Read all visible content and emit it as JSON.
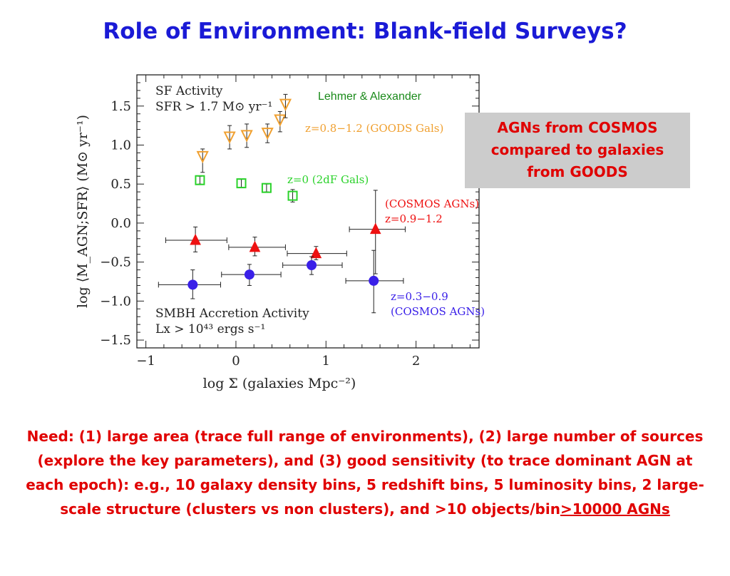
{
  "slide": {
    "title": "Role of Environment: Blank-field Surveys?",
    "credit": "Lehmer & Alexander",
    "callout": [
      "AGNs from COSMOS",
      "compared to galaxies",
      "from GOODS"
    ],
    "need_text": "Need: (1) large area (trace full range of environments), (2) large number of sources (explore the key parameters), and (3) good sensitivity (to trace dominant AGN at each epoch): e.g., 10 galaxy density bins, 5 redshift bins, 5 luminosity bins, 2 large-scale structure (clusters vs non clusters), and >10 objects/bin",
    "need_highlight": ">10000 AGNs"
  },
  "colors": {
    "title": "#1a1ad6",
    "text_red": "#e00000",
    "credit": "#1a8a1a",
    "callout_bg": "#cccccc"
  },
  "chart_data": {
    "type": "scatter",
    "xlabel": "log Σ (galaxies Mpc⁻²)",
    "ylabel": "log ⟨M_AGN;SFR⟩ (M⊙ yr⁻¹)",
    "xlim": [
      -1.1,
      2.7
    ],
    "ylim": [
      -1.6,
      1.9
    ],
    "x_ticks": [
      -1,
      0,
      1,
      2
    ],
    "x_tick_labels": [
      "−1",
      "0",
      "1",
      "2"
    ],
    "y_ticks": [
      1.5,
      1.0,
      0.5,
      0.0,
      -0.5,
      -1.0,
      -1.5
    ],
    "y_tick_labels": [
      "1.5",
      "1.0",
      "0.5",
      "0.0",
      "−0.5",
      "−1.0",
      "−1.5"
    ],
    "annotations": {
      "sf_line1": "SF Activity",
      "sf_line2": "SFR > 1.7 M⊙ yr⁻¹",
      "smbh_line1": "SMBH Accretion Activity",
      "smbh_line2": "Lx > 10⁴³ ergs s⁻¹"
    },
    "series": [
      {
        "name": "z=0.8−1.2 (GOODS Gals)",
        "label_lines": [
          "z=0.8−1.2 (GOODS Gals)"
        ],
        "marker": "triangle-down-open",
        "color": "#f0a030",
        "points": [
          {
            "x": -0.37,
            "y": 0.85,
            "ylo": 0.65,
            "yhi": 0.95
          },
          {
            "x": -0.07,
            "y": 1.1,
            "ylo": 0.95,
            "yhi": 1.25
          },
          {
            "x": 0.12,
            "y": 1.12,
            "ylo": 0.97,
            "yhi": 1.27
          },
          {
            "x": 0.35,
            "y": 1.15,
            "ylo": 1.03,
            "yhi": 1.27
          },
          {
            "x": 0.49,
            "y": 1.32,
            "ylo": 1.17,
            "yhi": 1.43
          },
          {
            "x": 0.55,
            "y": 1.52,
            "ylo": 1.35,
            "yhi": 1.65
          }
        ]
      },
      {
        "name": "z=0 (2dF Gals)",
        "label_lines": [
          "z=0 (2dF Gals)"
        ],
        "marker": "square-open",
        "color": "#2ad22a",
        "points": [
          {
            "x": -0.4,
            "y": 0.55,
            "ylo": 0.5,
            "yhi": 0.6
          },
          {
            "x": 0.06,
            "y": 0.51,
            "ylo": 0.46,
            "yhi": 0.56
          },
          {
            "x": 0.34,
            "y": 0.45,
            "ylo": 0.4,
            "yhi": 0.5
          },
          {
            "x": 0.63,
            "y": 0.35,
            "ylo": 0.27,
            "yhi": 0.43
          }
        ]
      },
      {
        "name": "z=0.9−1.2 (COSMOS AGNs)",
        "label_lines": [
          "(COSMOS AGNs)",
          "z=0.9−1.2"
        ],
        "marker": "triangle-up-filled",
        "color": "#ee1111",
        "points": [
          {
            "x": -0.45,
            "y": -0.22,
            "xlo": -0.78,
            "xhi": -0.1,
            "ylo": -0.37,
            "yhi": -0.05
          },
          {
            "x": 0.21,
            "y": -0.31,
            "xlo": -0.08,
            "xhi": 0.55,
            "ylo": -0.42,
            "yhi": -0.18
          },
          {
            "x": 0.89,
            "y": -0.39,
            "xlo": 0.57,
            "xhi": 1.23,
            "ylo": -0.47,
            "yhi": -0.3
          },
          {
            "x": 1.55,
            "y": -0.08,
            "xlo": 1.26,
            "xhi": 1.88,
            "ylo": -0.65,
            "yhi": 0.42
          }
        ]
      },
      {
        "name": "z=0.3−0.9 (COSMOS AGNs)",
        "label_lines": [
          "z=0.3−0.9",
          "(COSMOS AGNs)"
        ],
        "marker": "circle-filled",
        "color": "#3a20e8",
        "points": [
          {
            "x": -0.48,
            "y": -0.79,
            "xlo": -0.86,
            "xhi": -0.17,
            "ylo": -0.97,
            "yhi": -0.6
          },
          {
            "x": 0.15,
            "y": -0.66,
            "xlo": -0.16,
            "xhi": 0.5,
            "ylo": -0.8,
            "yhi": -0.53
          },
          {
            "x": 0.84,
            "y": -0.54,
            "xlo": 0.52,
            "xhi": 1.18,
            "ylo": -0.66,
            "yhi": -0.43
          },
          {
            "x": 1.53,
            "y": -0.74,
            "xlo": 1.22,
            "xhi": 1.86,
            "ylo": -1.15,
            "yhi": -0.35
          }
        ]
      }
    ]
  }
}
